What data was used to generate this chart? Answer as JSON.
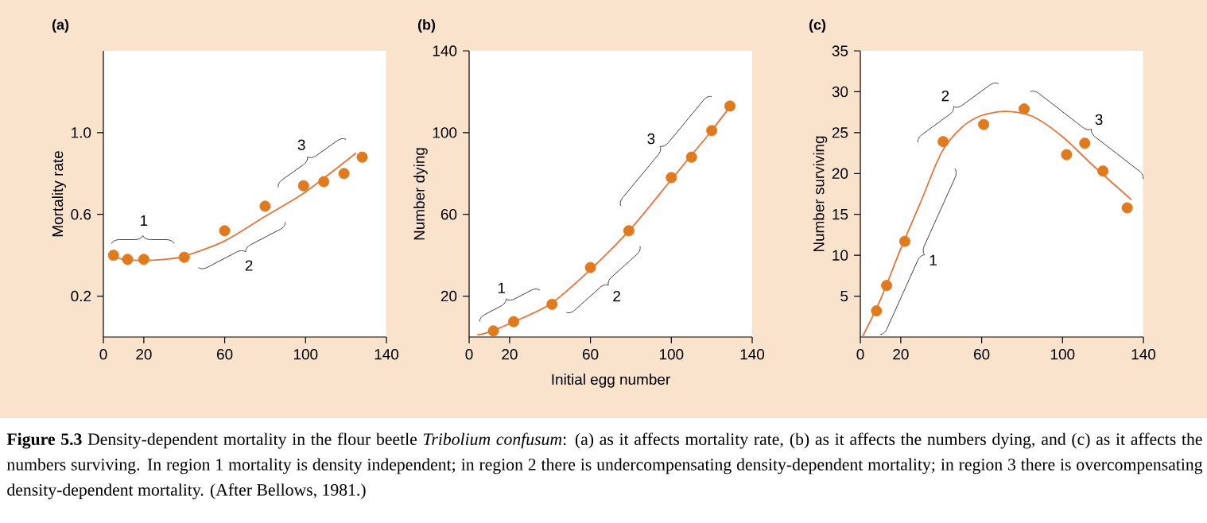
{
  "chart_data": [
    {
      "type": "scatter",
      "title": "(a)",
      "ylabel": "Mortality rate",
      "xlim": [
        0,
        140
      ],
      "ylim": [
        0,
        1.4
      ],
      "xticks": [
        0,
        20,
        60,
        100,
        140
      ],
      "yticks": [
        0.2,
        0.6,
        {
          "value": 1,
          "label": "1.0"
        }
      ],
      "series": [
        {
          "type": "scatter",
          "color": "#e07a1f",
          "x": [
            5,
            12,
            20,
            40,
            60,
            80,
            99,
            109,
            119,
            128
          ],
          "values": [
            0.4,
            0.38,
            0.38,
            0.39,
            0.52,
            0.64,
            0.74,
            0.76,
            0.8,
            0.88
          ]
        },
        {
          "type": "line",
          "color": "#e8733a",
          "x": [
            3,
            10,
            20,
            30,
            40,
            60,
            80,
            100,
            125
          ],
          "values": [
            0.395,
            0.38,
            0.375,
            0.38,
            0.395,
            0.47,
            0.59,
            0.71,
            0.9
          ]
        }
      ],
      "annotations": [
        "1",
        "2",
        "3"
      ]
    },
    {
      "type": "scatter",
      "title": "(b)",
      "xlabel": "Initial egg number",
      "ylabel": "Number dying",
      "xlim": [
        0,
        140
      ],
      "ylim": [
        0,
        140
      ],
      "xticks": [
        0,
        20,
        60,
        100,
        140
      ],
      "yticks": [
        20,
        60,
        100,
        140
      ],
      "series": [
        {
          "type": "scatter",
          "color": "#e07a1f",
          "x": [
            12,
            22,
            41,
            60,
            79,
            100,
            110,
            120,
            129
          ],
          "values": [
            3,
            7.5,
            16,
            34,
            52,
            78,
            88,
            101,
            113
          ]
        },
        {
          "type": "line",
          "color": "#e8733a",
          "x": [
            4,
            10,
            20,
            40,
            60,
            80,
            100,
            110,
            120,
            130
          ],
          "values": [
            1,
            2.5,
            6.5,
            16,
            33,
            53,
            77,
            89,
            101,
            114
          ]
        }
      ],
      "annotations": [
        "1",
        "2",
        "3"
      ]
    },
    {
      "type": "scatter",
      "title": "(c)",
      "ylabel": "Number surviving",
      "xlim": [
        0,
        140
      ],
      "ylim": [
        0,
        35
      ],
      "xticks": [
        0,
        20,
        60,
        100,
        140
      ],
      "yticks": [
        5,
        10,
        15,
        20,
        25,
        30,
        35
      ],
      "series": [
        {
          "type": "scatter",
          "color": "#e07a1f",
          "x": [
            8,
            13,
            22,
            41,
            61,
            81,
            102,
            111,
            120,
            132
          ],
          "values": [
            3.2,
            6.3,
            11.7,
            23.9,
            26,
            27.9,
            22.3,
            23.7,
            20.3,
            15.8
          ]
        },
        {
          "type": "line",
          "color": "#e8733a",
          "x": [
            1,
            10,
            20,
            30,
            40,
            50,
            60,
            72,
            85,
            100,
            115,
            134
          ],
          "values": [
            0,
            4.6,
            10.8,
            16.6,
            22.5,
            25.6,
            27.1,
            27.6,
            27,
            24.5,
            21,
            16.8
          ]
        }
      ],
      "annotations": [
        "1",
        "2",
        "3"
      ]
    },
    {
      "type": "other",
      "annotations": [
        "**Figure 5.3**  Density-dependent mortality in the flour beetle *Tribolium confusum*: (a) as it affects mortality rate, (b) as it affects the numbers dying, and (c) as it affects the numbers surviving. In region 1 mortality is density independent; in region 2 there is undercompensating density-dependent mortality; in region 3 there is overcompensating density-dependent mortality. (After Bellows, 1981.)"
      ]
    }
  ]
}
